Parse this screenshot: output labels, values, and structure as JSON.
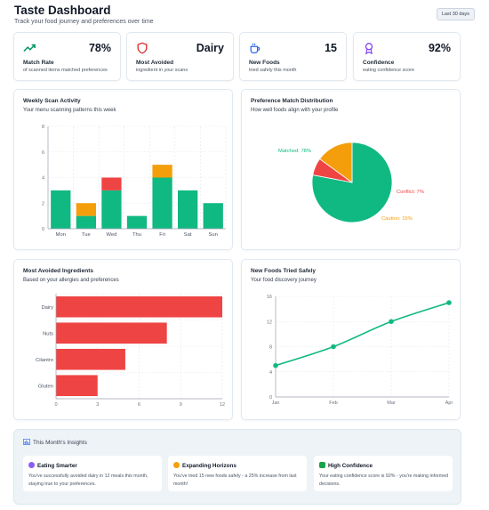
{
  "header": {
    "title": "Taste Dashboard",
    "subtitle": "Track your food journey and preferences over time",
    "range_button": "Last 30 days"
  },
  "stats": [
    {
      "icon": "trending-up-icon",
      "value": "78%",
      "label": "Match Rate",
      "desc": "of scanned items matched preferences",
      "color": "#059669"
    },
    {
      "icon": "shield-icon",
      "value": "Dairy",
      "label": "Most Avoided",
      "desc": "ingredient in your scans",
      "color": "#dc2626"
    },
    {
      "icon": "coffee-cup-icon",
      "value": "15",
      "label": "New Foods",
      "desc": "tried safely this month",
      "color": "#2563eb"
    },
    {
      "icon": "award-icon",
      "value": "92%",
      "label": "Confidence",
      "desc": "eating confidence score",
      "color": "#7c3aed"
    }
  ],
  "weekly": {
    "title": "Weekly Scan Activity",
    "subtitle": "Your menu scanning patterns this week",
    "chart_data": {
      "type": "bar",
      "stacked": true,
      "categories": [
        "Mon",
        "Tue",
        "Wed",
        "Thu",
        "Fri",
        "Sat",
        "Sun"
      ],
      "series": [
        {
          "values": [
            3,
            1,
            3,
            1,
            4,
            3,
            2
          ],
          "color": "#10b981"
        },
        {
          "values": [
            0,
            1,
            0,
            0,
            1,
            0,
            0
          ],
          "color": "#f59e0b"
        },
        {
          "values": [
            0,
            0,
            1,
            0,
            0,
            0,
            0
          ],
          "color": "#ef4444"
        }
      ],
      "ylim": [
        0,
        8
      ],
      "yticks": [
        0,
        2,
        4,
        6,
        8
      ],
      "grid": true
    }
  },
  "distribution": {
    "title": "Preference Match Distribution",
    "subtitle": "How well foods align with your profile",
    "chart_data": {
      "type": "pie",
      "slices": [
        {
          "label": "Matched: 78%",
          "value": 78,
          "color": "#10b981"
        },
        {
          "label": "Conflict: 7%",
          "value": 7,
          "color": "#ef4444"
        },
        {
          "label": "Caution: 15%",
          "value": 15,
          "color": "#f59e0b"
        }
      ]
    }
  },
  "avoided": {
    "title": "Most Avoided Ingredients",
    "subtitle": "Based on your allergies and preferences",
    "chart_data": {
      "type": "bar",
      "orientation": "horizontal",
      "categories": [
        "Dairy",
        "Nuts",
        "Cilantro",
        "Gluten"
      ],
      "values": [
        12,
        8,
        5,
        3
      ],
      "xlim": [
        0,
        12
      ],
      "xticks": [
        0,
        3,
        6,
        9,
        12
      ],
      "color": "#ef4444",
      "grid": true
    }
  },
  "newfoods": {
    "title": "New Foods Tried Safely",
    "subtitle": "Your food discovery journey",
    "chart_data": {
      "type": "line",
      "x": [
        "Jan",
        "Feb",
        "Mar",
        "Apr"
      ],
      "values": [
        5,
        8,
        12,
        15
      ],
      "ylim": [
        0,
        16
      ],
      "yticks": [
        0,
        4,
        8,
        12,
        16
      ],
      "color": "#10b981",
      "grid": true
    }
  },
  "insights": {
    "title": "This Month's Insights",
    "cards": [
      {
        "heading": "Eating Smarter",
        "text": "You've successfully avoided dairy in 12 meals this month, staying true to your preferences.",
        "icon": "brain-icon",
        "color": "#8b5cf6"
      },
      {
        "heading": "Expanding Horizons",
        "text": "You've tried 15 new foods safely - a 25% increase from last month!",
        "icon": "sparkle-icon",
        "color": "#f59e0b"
      },
      {
        "heading": "High Confidence",
        "text": "Your eating confidence score is 92% - you're making informed decisions.",
        "icon": "check-icon",
        "color": "#16a34a"
      }
    ]
  }
}
